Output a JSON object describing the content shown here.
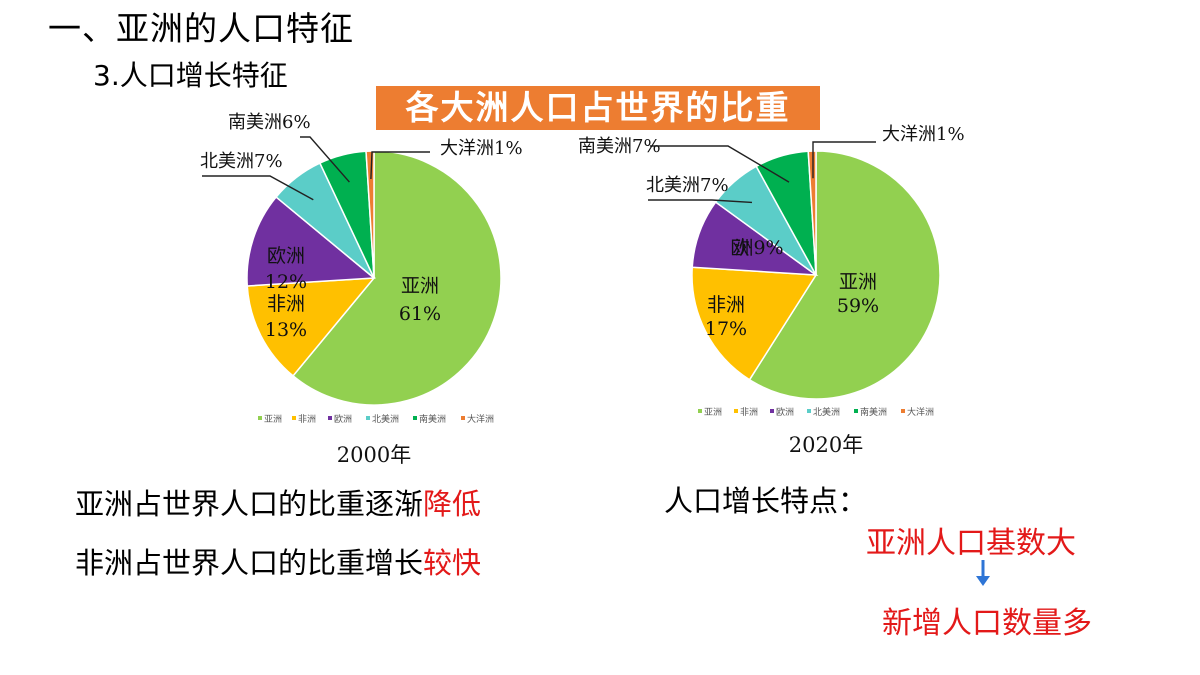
{
  "slide": {
    "heading": "一、亚洲的人口特征",
    "subheading": "3.人口增长特征",
    "banner": "各大洲人口占世界的比重",
    "conclusion_1_prefix": "亚洲占世界人口的比重逐渐",
    "conclusion_1_highlight": "降低",
    "conclusion_2_prefix": "非洲占世界人口的比重增长",
    "conclusion_2_highlight": "较快",
    "feature_title": "人口增长特点：",
    "feature_line_1": "亚洲人口基数大",
    "feature_line_2": "新增人口数量多",
    "colors": {
      "highlight": "#e31919",
      "banner": "#ed7d31",
      "arrow": "#2e75d6"
    }
  },
  "chart_data": [
    {
      "type": "pie",
      "title": "2000年",
      "legend_position": "bottom",
      "series": [
        {
          "name": "亚洲",
          "value": 61,
          "label": "61%",
          "color": "#92d050"
        },
        {
          "name": "非洲",
          "value": 13,
          "label": "13%",
          "color": "#ffc000"
        },
        {
          "name": "欧洲",
          "value": 12,
          "label": "12%",
          "color": "#7030a0"
        },
        {
          "name": "北美洲",
          "value": 7,
          "label": "7%",
          "color": "#5bcdc8"
        },
        {
          "name": "南美洲",
          "value": 6,
          "label": "6%",
          "color": "#00b050"
        },
        {
          "name": "大洋洲",
          "value": 1,
          "label": "1%",
          "color": "#ed7d31"
        }
      ]
    },
    {
      "type": "pie",
      "title": "2020年",
      "legend_position": "bottom",
      "series": [
        {
          "name": "亚洲",
          "value": 59,
          "label": "59%",
          "color": "#92d050"
        },
        {
          "name": "非洲",
          "value": 17,
          "label": "17%",
          "color": "#ffc000"
        },
        {
          "name": "欧洲",
          "value": 9,
          "label": "9%",
          "color": "#7030a0"
        },
        {
          "name": "北美洲",
          "value": 7,
          "label": "7%",
          "color": "#5bcdc8"
        },
        {
          "name": "南美洲",
          "value": 7,
          "label": "7%",
          "color": "#00b050"
        },
        {
          "name": "大洋洲",
          "value": 1,
          "label": "1%",
          "color": "#ed7d31"
        }
      ]
    }
  ]
}
